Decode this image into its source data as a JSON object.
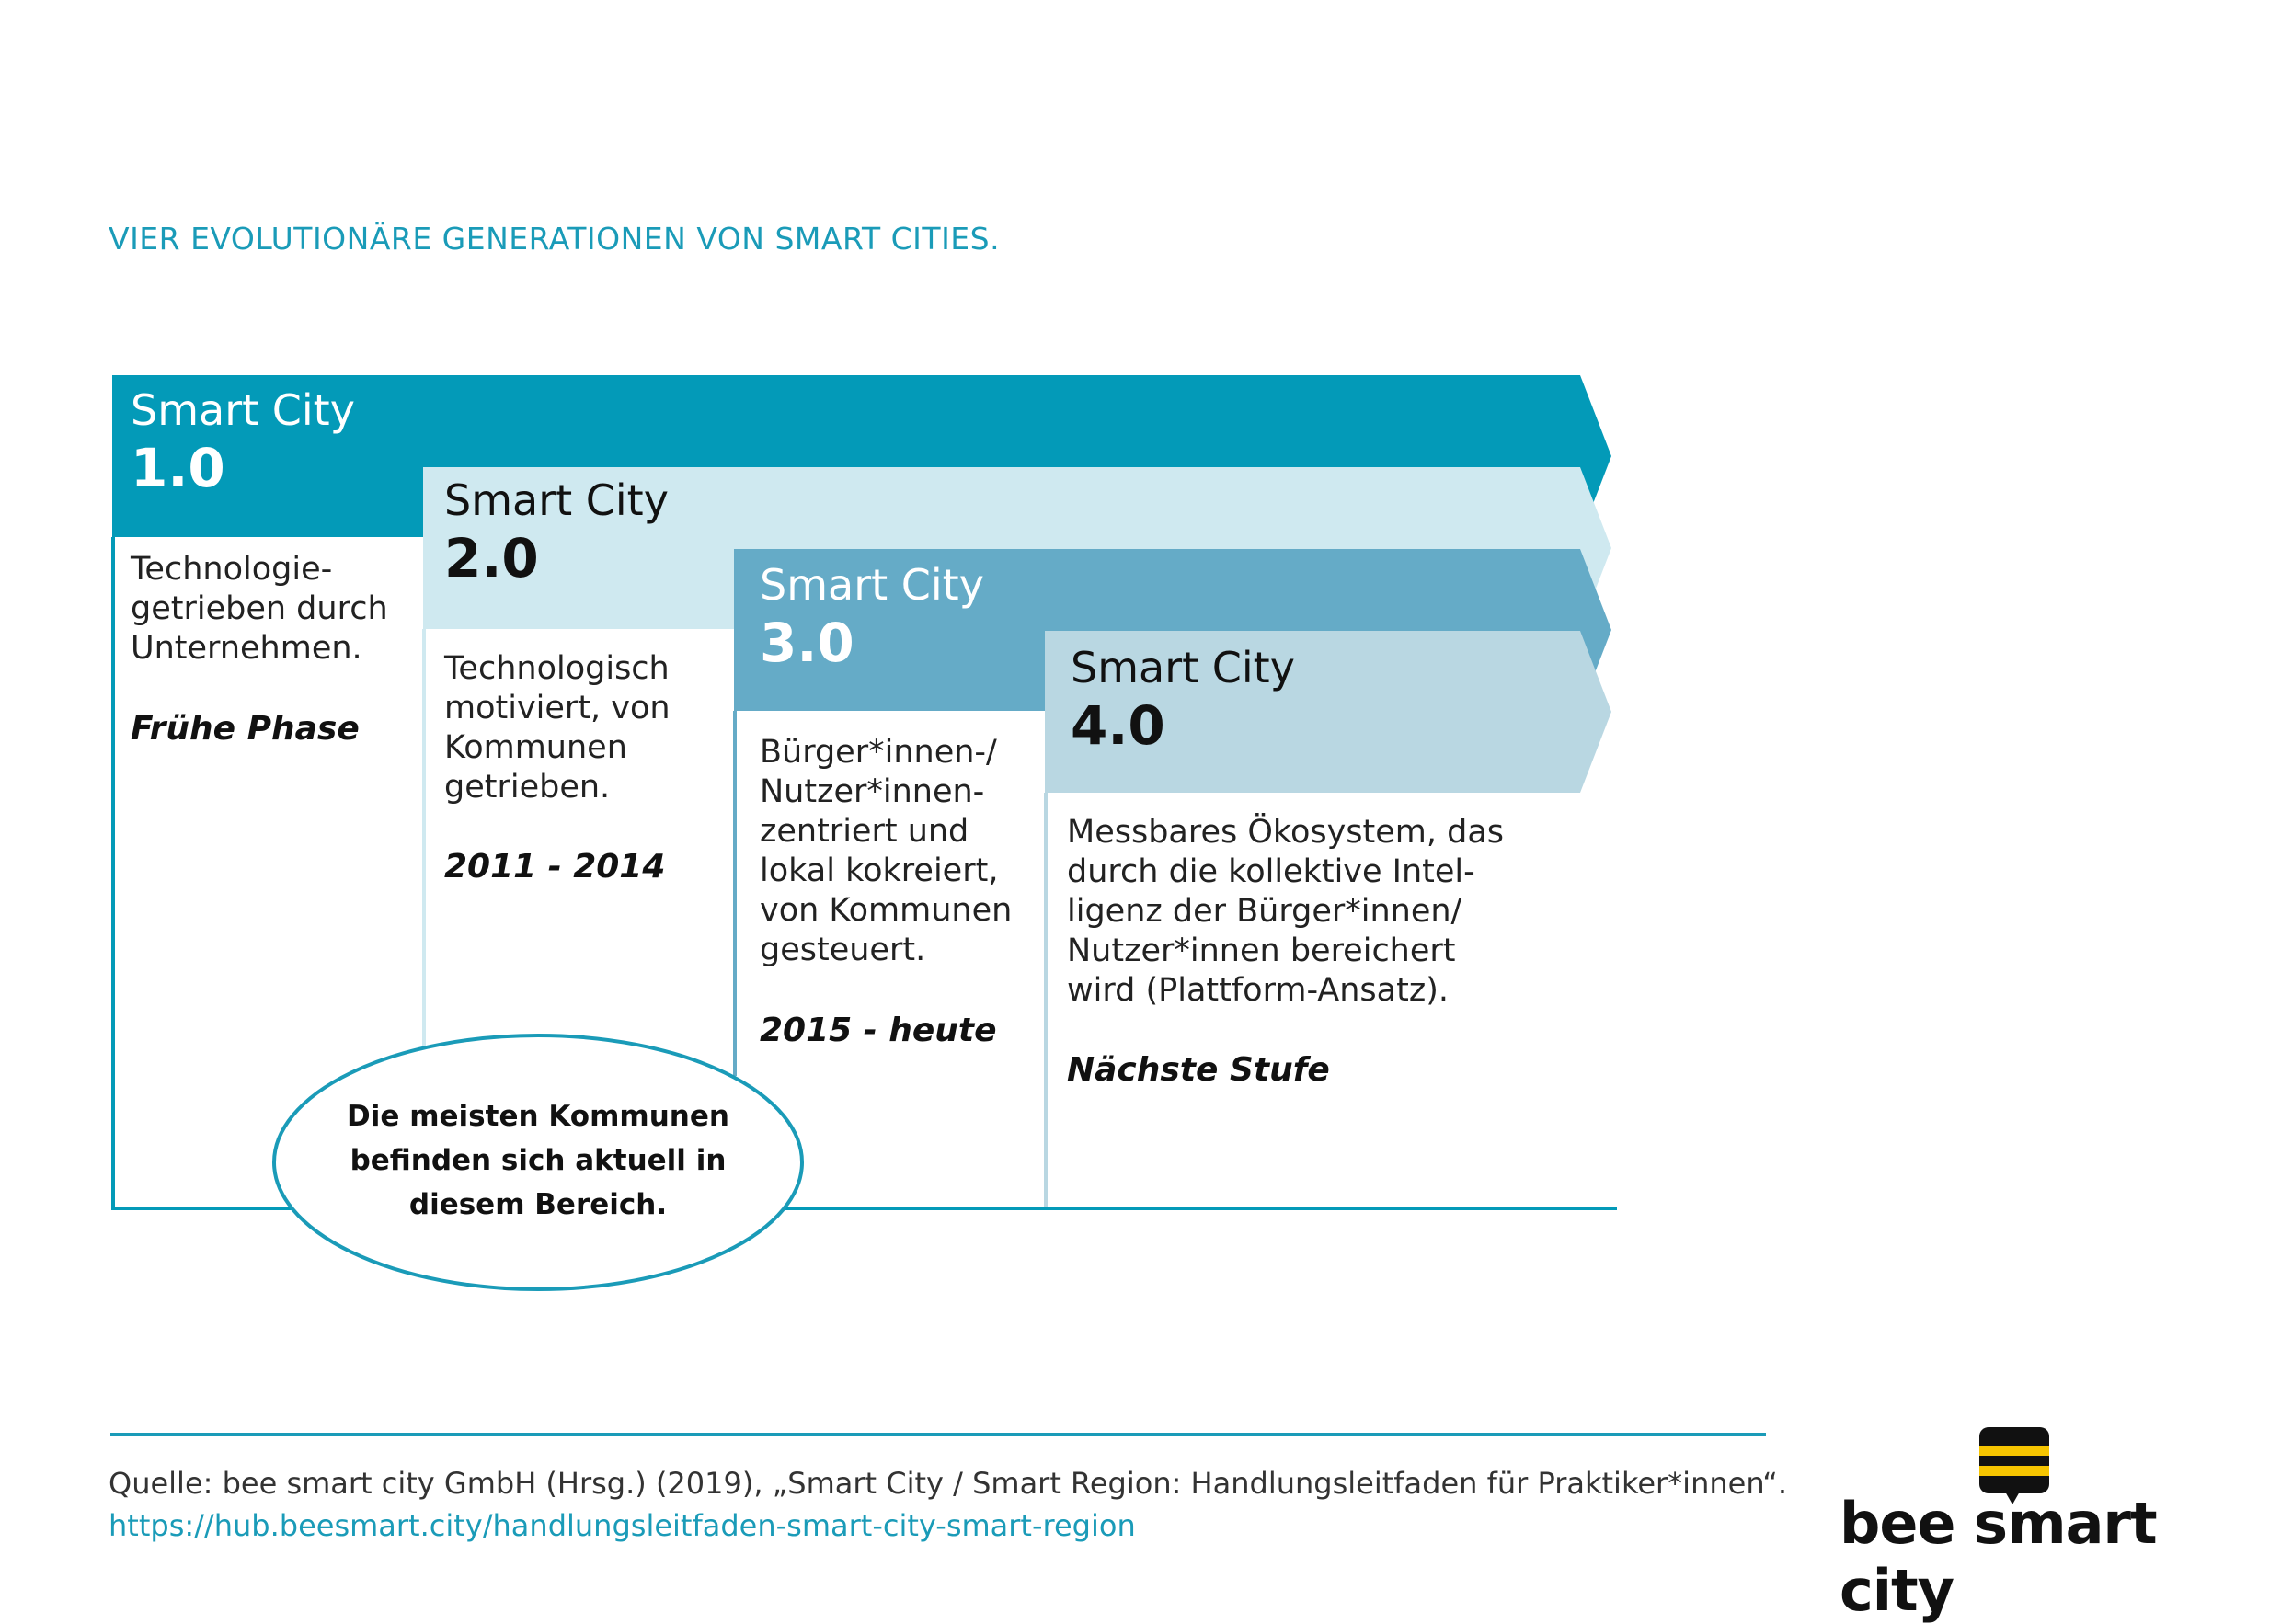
{
  "title": "VIER EVOLUTIONÄRE GENERATIONEN VON SMART CITIES.",
  "colors": {
    "gen1": "#039ab8",
    "gen2": "#cfe9f0",
    "gen3": "#65abc7",
    "gen4": "#b9d7e2",
    "accent": "#1a9bb8",
    "logo_yellow": "#f6c500"
  },
  "generations": [
    {
      "name": "Smart City",
      "version": "1.0",
      "description": "Technologie-\ngetrieben durch\nUnternehmen.",
      "phase": "Frühe Phase"
    },
    {
      "name": "Smart City",
      "version": "2.0",
      "description": "Technologisch\nmotiviert, von\nKommunen\ngetrieben.",
      "phase": "2011 - 2014"
    },
    {
      "name": "Smart City",
      "version": "3.0",
      "description": "Bürger*innen-/\nNutzer*innen-\nzentriert und\nlokal kokreiert,\nvon Kommunen\ngesteuert.",
      "phase": "2015 - heute"
    },
    {
      "name": "Smart City",
      "version": "4.0",
      "description": "Messbares Ökosystem, das\ndurch die kollektive Intel-\nligenz der Bürger*innen/\nNutzer*innen bereichert\nwird (Plattform-Ansatz).",
      "phase": "Nächste Stufe"
    }
  ],
  "callout": "Die meisten Kommunen befinden sich aktuell in diesem Bereich.",
  "source": "Quelle: bee smart city GmbH (Hrsg.) (2019), „Smart City / Smart Region: Handlungsleitfaden für Praktiker*innen“.",
  "source_link": "https://hub.beesmart.city/handlungsleitfaden-smart-city-smart-region",
  "logo_text": "bee smart city"
}
